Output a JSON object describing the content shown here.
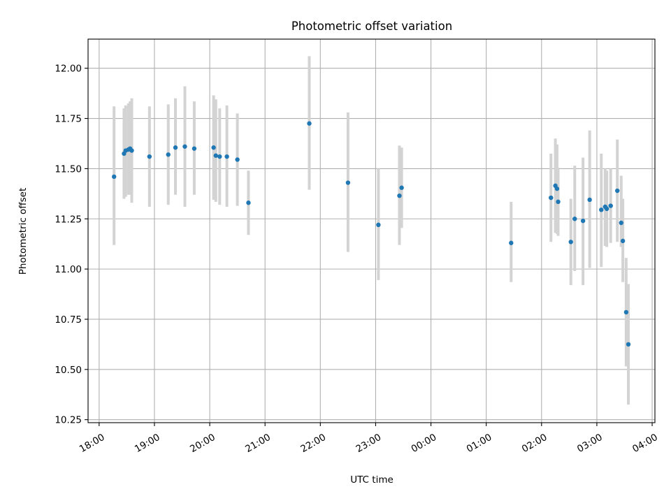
{
  "chart_data": {
    "type": "scatter",
    "title": "Photometric offset variation",
    "xlabel": "UTC time",
    "ylabel": "Photometric offset",
    "xlim": [
      17.8,
      28.05
    ],
    "ylim": [
      10.235,
      12.145
    ],
    "grid": true,
    "x_ticks": [
      {
        "value": 18,
        "label": "18:00"
      },
      {
        "value": 19,
        "label": "19:00"
      },
      {
        "value": 20,
        "label": "20:00"
      },
      {
        "value": 21,
        "label": "21:00"
      },
      {
        "value": 22,
        "label": "22:00"
      },
      {
        "value": 23,
        "label": "23:00"
      },
      {
        "value": 24,
        "label": "00:00"
      },
      {
        "value": 25,
        "label": "01:00"
      },
      {
        "value": 26,
        "label": "02:00"
      },
      {
        "value": 27,
        "label": "03:00"
      },
      {
        "value": 28,
        "label": "04:00"
      }
    ],
    "y_ticks": [
      {
        "value": 10.25,
        "label": "10.25"
      },
      {
        "value": 10.5,
        "label": "10.50"
      },
      {
        "value": 10.75,
        "label": "10.75"
      },
      {
        "value": 11.0,
        "label": "11.00"
      },
      {
        "value": 11.25,
        "label": "11.25"
      },
      {
        "value": 11.5,
        "label": "11.50"
      },
      {
        "value": 11.75,
        "label": "11.75"
      },
      {
        "value": 12.0,
        "label": "12.00"
      }
    ],
    "point_color": "#1f77b4",
    "errorbar_color": "#d3d3d3",
    "points": [
      {
        "x": 18.27,
        "y": 11.46,
        "lo": 11.12,
        "hi": 11.81
      },
      {
        "x": 18.45,
        "y": 11.575,
        "lo": 11.35,
        "hi": 11.8
      },
      {
        "x": 18.48,
        "y": 11.59,
        "lo": 11.36,
        "hi": 11.815
      },
      {
        "x": 18.53,
        "y": 11.595,
        "lo": 11.37,
        "hi": 11.825
      },
      {
        "x": 18.56,
        "y": 11.6,
        "lo": 11.37,
        "hi": 11.835
      },
      {
        "x": 18.59,
        "y": 11.59,
        "lo": 11.33,
        "hi": 11.85
      },
      {
        "x": 18.91,
        "y": 11.56,
        "lo": 11.31,
        "hi": 11.81
      },
      {
        "x": 19.25,
        "y": 11.57,
        "lo": 11.32,
        "hi": 11.82
      },
      {
        "x": 19.38,
        "y": 11.605,
        "lo": 11.37,
        "hi": 11.85
      },
      {
        "x": 19.55,
        "y": 11.61,
        "lo": 11.31,
        "hi": 11.91
      },
      {
        "x": 19.72,
        "y": 11.6,
        "lo": 11.37,
        "hi": 11.835
      },
      {
        "x": 20.07,
        "y": 11.605,
        "lo": 11.345,
        "hi": 11.865
      },
      {
        "x": 20.11,
        "y": 11.565,
        "lo": 11.335,
        "hi": 11.845
      },
      {
        "x": 20.18,
        "y": 11.56,
        "lo": 11.32,
        "hi": 11.8
      },
      {
        "x": 20.31,
        "y": 11.56,
        "lo": 11.31,
        "hi": 11.815
      },
      {
        "x": 20.5,
        "y": 11.545,
        "lo": 11.315,
        "hi": 11.775
      },
      {
        "x": 20.7,
        "y": 11.33,
        "lo": 11.17,
        "hi": 11.49
      },
      {
        "x": 21.8,
        "y": 11.725,
        "lo": 11.395,
        "hi": 12.06
      },
      {
        "x": 22.5,
        "y": 11.43,
        "lo": 11.085,
        "hi": 11.78
      },
      {
        "x": 23.05,
        "y": 11.22,
        "lo": 10.945,
        "hi": 11.5
      },
      {
        "x": 23.43,
        "y": 11.365,
        "lo": 11.12,
        "hi": 11.615
      },
      {
        "x": 23.47,
        "y": 11.405,
        "lo": 11.205,
        "hi": 11.605
      },
      {
        "x": 25.45,
        "y": 11.13,
        "lo": 10.935,
        "hi": 11.335
      },
      {
        "x": 26.17,
        "y": 11.355,
        "lo": 11.135,
        "hi": 11.575
      },
      {
        "x": 26.25,
        "y": 11.415,
        "lo": 11.18,
        "hi": 11.65
      },
      {
        "x": 26.28,
        "y": 11.4,
        "lo": 11.175,
        "hi": 11.62
      },
      {
        "x": 26.3,
        "y": 11.335,
        "lo": 11.165,
        "hi": 11.505
      },
      {
        "x": 26.53,
        "y": 11.135,
        "lo": 10.92,
        "hi": 11.35
      },
      {
        "x": 26.6,
        "y": 11.25,
        "lo": 10.99,
        "hi": 11.515
      },
      {
        "x": 26.75,
        "y": 11.24,
        "lo": 10.92,
        "hi": 11.555
      },
      {
        "x": 26.87,
        "y": 11.345,
        "lo": 11.005,
        "hi": 11.69
      },
      {
        "x": 27.08,
        "y": 11.295,
        "lo": 11.01,
        "hi": 11.575
      },
      {
        "x": 27.15,
        "y": 11.31,
        "lo": 11.115,
        "hi": 11.5
      },
      {
        "x": 27.18,
        "y": 11.3,
        "lo": 11.11,
        "hi": 11.49
      },
      {
        "x": 27.25,
        "y": 11.315,
        "lo": 11.13,
        "hi": 11.5
      },
      {
        "x": 27.37,
        "y": 11.39,
        "lo": 11.135,
        "hi": 11.645
      },
      {
        "x": 27.44,
        "y": 11.23,
        "lo": 11.11,
        "hi": 11.465
      },
      {
        "x": 27.47,
        "y": 11.14,
        "lo": 10.935,
        "hi": 11.35
      },
      {
        "x": 27.53,
        "y": 10.785,
        "lo": 10.515,
        "hi": 11.055
      },
      {
        "x": 27.57,
        "y": 10.625,
        "lo": 10.325,
        "hi": 10.925
      }
    ]
  }
}
